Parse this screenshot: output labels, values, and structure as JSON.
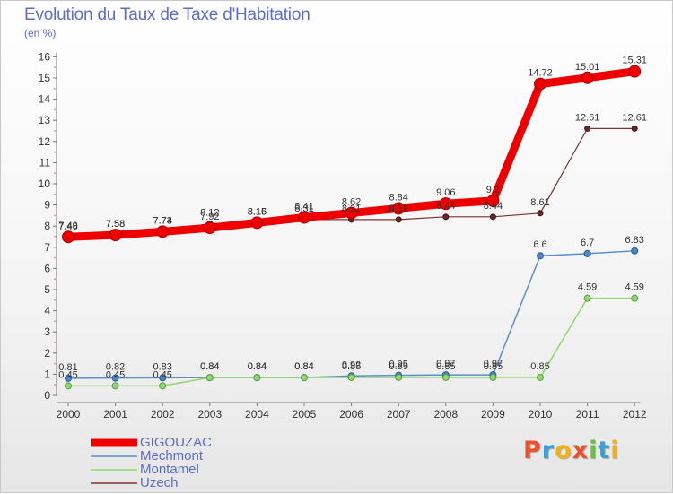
{
  "header": {
    "title": "Evolution du Taux de Taxe d'Habitation",
    "subtitle": "(en %)"
  },
  "brand": {
    "letters": [
      {
        "ch": "P",
        "color": "#e8532d"
      },
      {
        "ch": "r",
        "color": "#3aa0d8"
      },
      {
        "ch": "o",
        "color": "#f0b21c"
      },
      {
        "ch": "x",
        "color": "#e8532d"
      },
      {
        "ch": "i",
        "color": "#6bbd45"
      },
      {
        "ch": "t",
        "color": "#3aa0d8"
      },
      {
        "ch": "i",
        "color": "#f0b21c"
      }
    ]
  },
  "chart_data": {
    "type": "line",
    "title": "Evolution du Taux de Taxe d'Habitation",
    "ylabel": "(en %)",
    "xlabel": "",
    "x": [
      "2000",
      "2001",
      "2002",
      "2003",
      "2004",
      "2005",
      "2006",
      "2007",
      "2008",
      "2009",
      "2010",
      "2011",
      "2012"
    ],
    "ylim": [
      0,
      16
    ],
    "yticks": [
      0,
      1,
      2,
      3,
      4,
      5,
      6,
      7,
      8,
      9,
      10,
      11,
      12,
      13,
      14,
      15,
      16
    ],
    "grid": false,
    "legend_placement": "bottom-left",
    "series": [
      {
        "name": "Mechmont",
        "color": "#5a8fc8",
        "values": [
          0.81,
          0.82,
          0.83,
          0.84,
          0.84,
          0.84,
          0.92,
          0.95,
          0.97,
          0.97,
          6.6,
          6.7,
          6.83
        ],
        "labels": [
          "0.81",
          "0.82",
          "0.83",
          "0.84",
          "0.84",
          "0.84",
          "0.92",
          "0.95",
          "0.97",
          "0.97",
          "6.6",
          "6.7",
          "6.83"
        ]
      },
      {
        "name": "Montamel",
        "color": "#8ed86e",
        "values": [
          0.45,
          0.45,
          0.45,
          0.84,
          0.84,
          0.84,
          0.85,
          0.85,
          0.85,
          0.85,
          0.85,
          4.59,
          4.59
        ],
        "labels": [
          "0.45",
          "0.45",
          "0.45",
          "0.84",
          "0.84",
          "0.84",
          "0.85",
          "0.85",
          "0.85",
          "0.85",
          "0.85",
          "4.59",
          "4.59"
        ]
      },
      {
        "name": "Uzech",
        "color": "#7a3333",
        "values": [
          7.46,
          7.58,
          7.73,
          8.12,
          8.15,
          8.31,
          8.31,
          8.31,
          8.44,
          8.44,
          8.61,
          12.61,
          12.61
        ],
        "labels": [
          "7.46",
          "7.58",
          "7.73",
          "8.12",
          "8.15",
          "8.31",
          "8.31",
          "8.31",
          "8.44",
          "8.44",
          "8.61",
          "12.61",
          "12.61"
        ]
      },
      {
        "name": "GIGOUZAC",
        "color": "#ee0000",
        "values": [
          7.49,
          7.58,
          7.74,
          7.92,
          8.16,
          8.41,
          8.62,
          8.84,
          9.06,
          9.2,
          14.72,
          15.01,
          15.31
        ],
        "labels": [
          "7.49",
          "7.58",
          "7.74",
          "7.92",
          "8.16",
          "8.41",
          "8.62",
          "8.84",
          "9.06",
          "9.2",
          "14.72",
          "15.01",
          "15.31"
        ]
      }
    ],
    "legend": [
      "GIGOUZAC",
      "Mechmont",
      "Montamel",
      "Uzech"
    ]
  }
}
